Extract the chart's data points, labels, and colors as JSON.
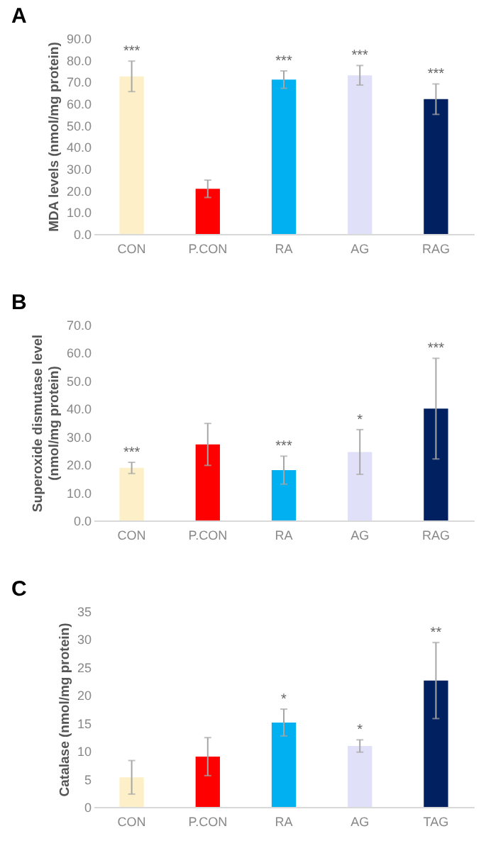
{
  "chart_data": [
    {
      "type": "bar",
      "title": "A",
      "ylabel": "MDA levels (nmol/mg protein)",
      "categories": [
        "CON",
        "P.CON",
        "RA",
        "AG",
        "RAG"
      ],
      "values": [
        72.5,
        20.8,
        71,
        73,
        62
      ],
      "errors": [
        7,
        4,
        4,
        4.5,
        7
      ],
      "colors": [
        "#fdf0c8",
        "#ff0000",
        "#00b0f0",
        "#e0e0f8",
        "#002060"
      ],
      "ylim": [
        0,
        90
      ],
      "yticks": [
        {
          "value": 0,
          "label": "0.0"
        },
        {
          "value": 10,
          "label": "10.0"
        },
        {
          "value": 20,
          "label": "20.0"
        },
        {
          "value": 30,
          "label": "30.0"
        },
        {
          "value": 40,
          "label": "40.0"
        },
        {
          "value": 50,
          "label": "50.0"
        },
        {
          "value": 60,
          "label": "60.0"
        },
        {
          "value": 70,
          "label": "70.0"
        },
        {
          "value": 80,
          "label": "80.0"
        },
        {
          "value": 90,
          "label": "90.0"
        }
      ],
      "annotations": [
        {
          "text": "***",
          "x": "CON",
          "y": 79.5
        },
        {
          "text": "***",
          "x": "RA",
          "y": 75
        },
        {
          "text": "***",
          "x": "AG",
          "y": 77.5
        },
        {
          "text": "***",
          "x": "RAG",
          "y": 69
        }
      ],
      "grid": false
    },
    {
      "type": "bar",
      "title": "B",
      "ylabel": "Superoxide dismutase level\n(nmol/mg protein)",
      "categories": [
        "CON",
        "P.CON",
        "RA",
        "AG",
        "RAG"
      ],
      "values": [
        18.8,
        27.2,
        18,
        24.5,
        40
      ],
      "errors": [
        2,
        7.5,
        5,
        8,
        18
      ],
      "colors": [
        "#f8e0d0",
        "#ff0000",
        "#00b0f0",
        "#e0e0f8",
        "#002060"
      ],
      "ylim": [
        0,
        70
      ],
      "yticks": [
        {
          "value": 0,
          "label": "0.0"
        },
        {
          "value": 10,
          "label": "10.0"
        },
        {
          "value": 20,
          "label": "20.0"
        },
        {
          "value": 30,
          "label": "30.0"
        },
        {
          "value": 40,
          "label": "40.0"
        },
        {
          "value": 50,
          "label": "50.0"
        },
        {
          "value": 60,
          "label": "60.0"
        },
        {
          "value": 70,
          "label": "70.0"
        }
      ],
      "annotations": [
        {
          "text": "***",
          "x": "CON",
          "y": 20.8
        },
        {
          "text": "***",
          "x": "RA",
          "y": 23
        },
        {
          "text": "*",
          "x": "AG",
          "y": 32.5
        },
        {
          "text": "***",
          "x": "RAG",
          "y": 58
        }
      ],
      "grid": false
    },
    {
      "type": "bar",
      "title": "C",
      "ylabel": "Catalase (nmol/mg protein)",
      "categories": [
        "CON",
        "P.CON",
        "RA",
        "AG",
        "TAG"
      ],
      "values": [
        5.3,
        9,
        15.1,
        10.9,
        22.6
      ],
      "errors": [
        3,
        3.4,
        2.4,
        1.1,
        6.8
      ],
      "colors": [
        "#f8e0d0",
        "#ff0000",
        "#00b0f0",
        "#dce6f2",
        "#002060"
      ],
      "ylim": [
        0,
        35
      ],
      "yticks": [
        0,
        5,
        10,
        15,
        20,
        25,
        30,
        35
      ],
      "annotations": [
        {
          "text": "*",
          "x": "RA",
          "y": 17.5
        },
        {
          "text": "*",
          "x": "AG",
          "y": 12
        },
        {
          "text": "**",
          "x": "TAG",
          "y": 29.4
        }
      ],
      "grid": false
    }
  ]
}
